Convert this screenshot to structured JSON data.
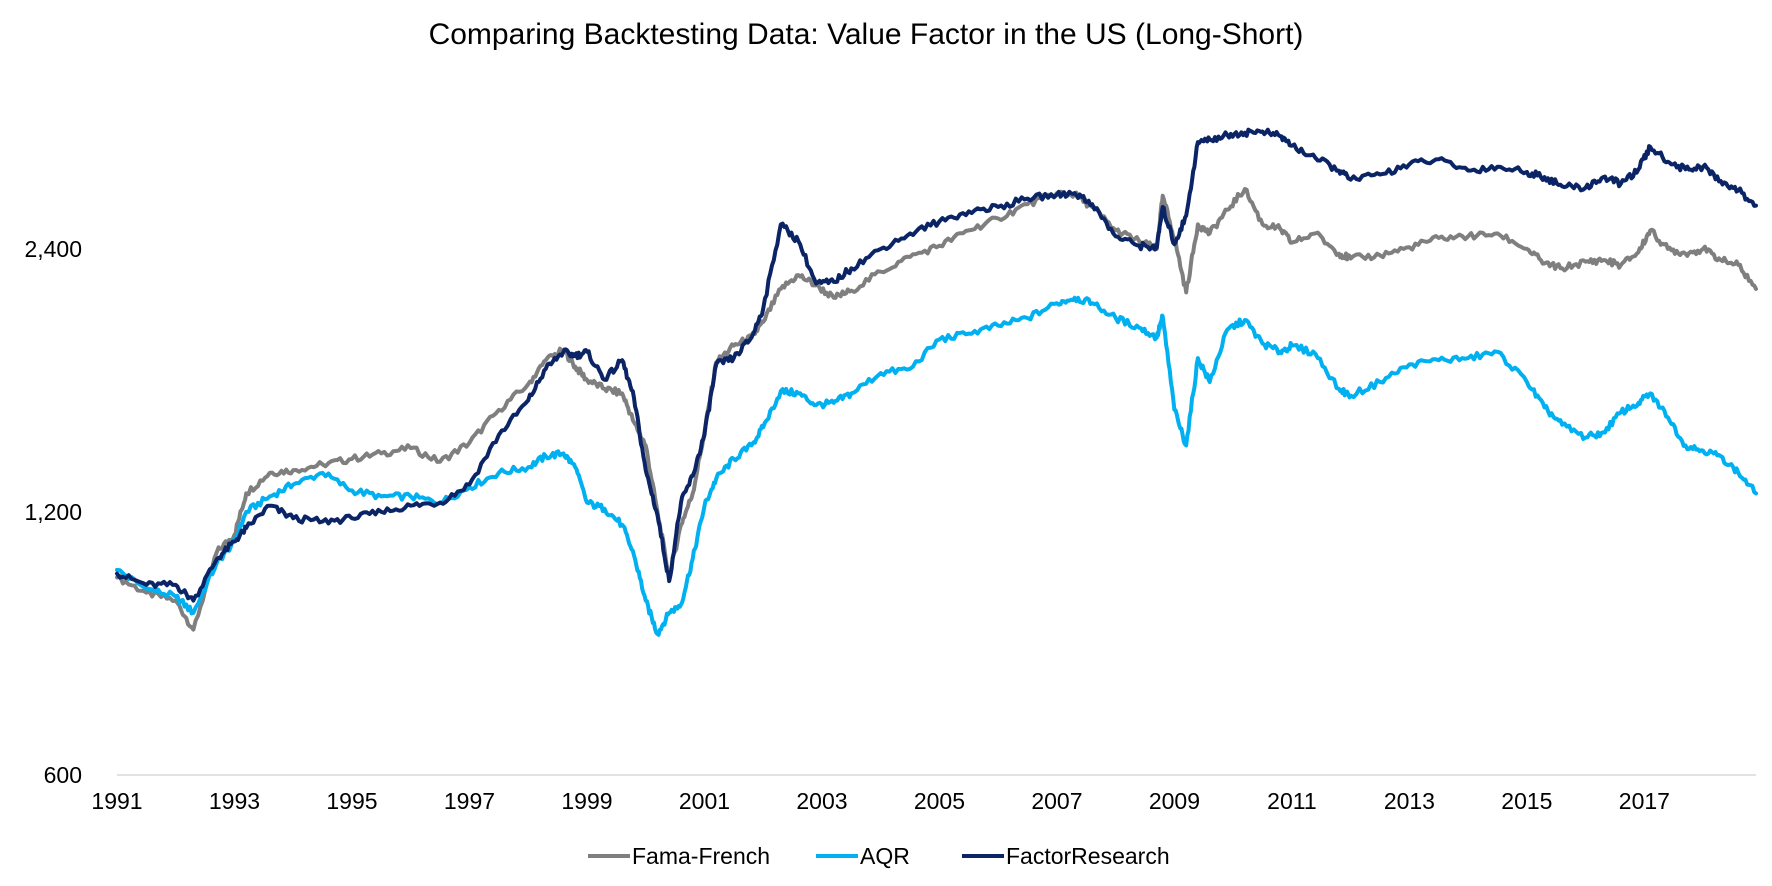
{
  "chart_data": {
    "type": "line",
    "title": "Comparing Backtesting Data: Value Factor in the US (Long-Short)",
    "xlabel": "",
    "ylabel": "",
    "x_ticks": [
      "1991",
      "1993",
      "1995",
      "1997",
      "1999",
      "2001",
      "2003",
      "2005",
      "2007",
      "2009",
      "2011",
      "2013",
      "2015",
      "2017"
    ],
    "y_ticks": [
      600,
      1200,
      2400
    ],
    "y_tick_labels": [
      "600",
      "1,200",
      "2,400"
    ],
    "y_scale": "log",
    "ylim": [
      600,
      3600
    ],
    "xlim": [
      1991.0,
      2018.9
    ],
    "grid": false,
    "legend_position": "bottom",
    "series": [
      {
        "name": "Fama-French",
        "color": "#7f7f7f",
        "x": [
          1991.0,
          1991.5,
          1992.0,
          1992.3,
          1992.7,
          1993.0,
          1993.2,
          1993.6,
          1994.0,
          1994.5,
          1995.0,
          1995.5,
          1996.0,
          1996.5,
          1997.0,
          1997.5,
          1998.0,
          1998.3,
          1998.6,
          1998.8,
          1999.0,
          1999.3,
          1999.6,
          1999.8,
          2000.0,
          2000.2,
          2000.4,
          2000.6,
          2000.8,
          2001.0,
          2001.2,
          2001.5,
          2001.8,
          2002.0,
          2002.3,
          2002.6,
          2002.9,
          2003.2,
          2003.5,
          2004.0,
          2004.5,
          2005.0,
          2005.5,
          2006.0,
          2006.5,
          2007.0,
          2007.3,
          2007.6,
          2008.0,
          2008.4,
          2008.7,
          2008.8,
          2009.0,
          2009.2,
          2009.4,
          2009.6,
          2009.9,
          2010.2,
          2010.5,
          2010.8,
          2011.0,
          2011.4,
          2011.8,
          2012.0,
          2012.5,
          2013.0,
          2013.5,
          2014.0,
          2014.5,
          2015.0,
          2015.3,
          2015.6,
          2016.0,
          2016.3,
          2016.6,
          2016.9,
          2017.1,
          2017.4,
          2017.7,
          2018.0,
          2018.3,
          2018.6,
          2018.9
        ],
        "y": [
          1010,
          970,
          950,
          880,
          1080,
          1130,
          1260,
          1330,
          1340,
          1360,
          1380,
          1400,
          1420,
          1370,
          1440,
          1570,
          1680,
          1790,
          1840,
          1760,
          1700,
          1660,
          1640,
          1520,
          1430,
          1200,
          1010,
          1160,
          1260,
          1480,
          1780,
          1860,
          1900,
          1980,
          2160,
          2240,
          2180,
          2110,
          2150,
          2260,
          2350,
          2420,
          2520,
          2600,
          2700,
          2780,
          2770,
          2680,
          2520,
          2450,
          2400,
          2760,
          2470,
          2140,
          2560,
          2500,
          2660,
          2810,
          2560,
          2530,
          2440,
          2500,
          2370,
          2340,
          2360,
          2410,
          2470,
          2480,
          2500,
          2400,
          2310,
          2280,
          2320,
          2330,
          2300,
          2380,
          2520,
          2400,
          2370,
          2400,
          2330,
          2300,
          2160
        ]
      },
      {
        "name": "AQR",
        "color": "#00b0f0",
        "x": [
          1991.0,
          1991.5,
          1992.0,
          1992.3,
          1992.7,
          1993.0,
          1993.2,
          1993.6,
          1994.0,
          1994.5,
          1995.0,
          1995.5,
          1996.0,
          1996.5,
          1997.0,
          1997.5,
          1998.0,
          1998.3,
          1998.6,
          1998.8,
          1999.0,
          1999.3,
          1999.6,
          1999.8,
          2000.0,
          2000.2,
          2000.4,
          2000.6,
          2000.8,
          2001.0,
          2001.2,
          2001.5,
          2001.8,
          2002.0,
          2002.3,
          2002.6,
          2002.9,
          2003.2,
          2003.5,
          2004.0,
          2004.5,
          2005.0,
          2005.5,
          2006.0,
          2006.5,
          2007.0,
          2007.3,
          2007.6,
          2008.0,
          2008.4,
          2008.7,
          2008.8,
          2009.0,
          2009.2,
          2009.4,
          2009.6,
          2009.9,
          2010.2,
          2010.5,
          2010.8,
          2011.0,
          2011.4,
          2011.8,
          2012.0,
          2012.5,
          2013.0,
          2013.5,
          2014.0,
          2014.5,
          2015.0,
          2015.3,
          2015.6,
          2016.0,
          2016.3,
          2016.6,
          2016.9,
          2017.1,
          2017.4,
          2017.7,
          2018.0,
          2018.3,
          2018.6,
          2018.9
        ],
        "y": [
          1030,
          980,
          960,
          920,
          1050,
          1110,
          1200,
          1250,
          1290,
          1330,
          1270,
          1250,
          1250,
          1230,
          1280,
          1330,
          1350,
          1390,
          1400,
          1350,
          1230,
          1210,
          1160,
          1070,
          950,
          870,
          920,
          940,
          1060,
          1220,
          1310,
          1380,
          1430,
          1500,
          1650,
          1640,
          1590,
          1600,
          1640,
          1730,
          1750,
          1890,
          1920,
          1960,
          2000,
          2080,
          2110,
          2080,
          2000,
          1950,
          1900,
          2010,
          1570,
          1430,
          1800,
          1690,
          1940,
          1990,
          1870,
          1830,
          1860,
          1820,
          1660,
          1630,
          1690,
          1770,
          1790,
          1800,
          1830,
          1690,
          1580,
          1510,
          1460,
          1480,
          1560,
          1600,
          1640,
          1540,
          1430,
          1410,
          1390,
          1330,
          1260
        ]
      },
      {
        "name": "FactorResearch",
        "color": "#0b2466",
        "x": [
          1991.0,
          1991.5,
          1992.0,
          1992.3,
          1992.7,
          1993.0,
          1993.2,
          1993.6,
          1994.0,
          1994.5,
          1995.0,
          1995.5,
          1996.0,
          1996.5,
          1997.0,
          1997.5,
          1998.0,
          1998.3,
          1998.6,
          1998.8,
          1999.0,
          1999.3,
          1999.6,
          1999.8,
          2000.0,
          2000.2,
          2000.4,
          2000.6,
          2000.8,
          2001.0,
          2001.2,
          2001.5,
          2001.8,
          2002.0,
          2002.3,
          2002.6,
          2002.9,
          2003.2,
          2003.5,
          2004.0,
          2004.5,
          2005.0,
          2005.5,
          2006.0,
          2006.5,
          2007.0,
          2007.3,
          2007.6,
          2008.0,
          2008.4,
          2008.7,
          2008.8,
          2009.0,
          2009.2,
          2009.4,
          2009.6,
          2009.9,
          2010.2,
          2010.5,
          2010.8,
          2011.0,
          2011.4,
          2011.8,
          2012.0,
          2012.5,
          2013.0,
          2013.5,
          2014.0,
          2014.5,
          2015.0,
          2015.3,
          2015.6,
          2016.0,
          2016.3,
          2016.6,
          2016.9,
          2017.1,
          2017.4,
          2017.7,
          2018.0,
          2018.3,
          2018.6,
          2018.9
        ],
        "y": [
          1020,
          990,
          990,
          950,
          1060,
          1110,
          1150,
          1220,
          1180,
          1170,
          1180,
          1200,
          1220,
          1230,
          1290,
          1470,
          1610,
          1750,
          1830,
          1810,
          1830,
          1700,
          1790,
          1620,
          1340,
          1190,
          1000,
          1230,
          1320,
          1470,
          1770,
          1800,
          1900,
          2050,
          2560,
          2450,
          2190,
          2200,
          2280,
          2400,
          2500,
          2580,
          2650,
          2680,
          2740,
          2770,
          2780,
          2700,
          2480,
          2420,
          2410,
          2680,
          2430,
          2620,
          3180,
          3200,
          3240,
          3260,
          3270,
          3230,
          3150,
          3050,
          2950,
          2880,
          2920,
          3000,
          3040,
          2950,
          2980,
          2940,
          2900,
          2830,
          2820,
          2900,
          2850,
          2960,
          3140,
          3020,
          2960,
          2980,
          2870,
          2800,
          2690
        ]
      }
    ]
  }
}
